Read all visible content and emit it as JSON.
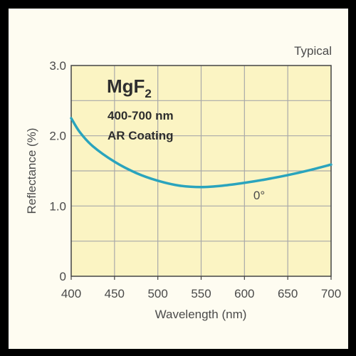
{
  "chart_data": {
    "type": "line",
    "x_label": "Wavelength (nm)",
    "y_label": "Reflectance (%)",
    "corner_note": "Typical",
    "title_main": "MgF",
    "title_sub": "2",
    "subtitle_lines": [
      "400-700 nm",
      "AR Coating"
    ],
    "x_ticks": [
      400,
      450,
      500,
      550,
      600,
      650,
      700
    ],
    "y_ticks": [
      0,
      1.0,
      2.0,
      3.0
    ],
    "y_tick_labels": [
      "0",
      "1.0",
      "2.0",
      "3.0"
    ],
    "xlim": [
      400,
      700
    ],
    "ylim": [
      0,
      3.0
    ],
    "grid": true,
    "colors": {
      "plot_bg": "#fbf4c3",
      "grid": "#a9a9a9",
      "line": "#2aa4bd",
      "frame": "#444444"
    },
    "series": [
      {
        "name": "0°",
        "x": [
          400,
          410,
          425,
          450,
          475,
          500,
          525,
          550,
          575,
          600,
          625,
          650,
          675,
          700
        ],
        "y": [
          2.25,
          2.05,
          1.85,
          1.63,
          1.47,
          1.36,
          1.29,
          1.27,
          1.29,
          1.33,
          1.38,
          1.44,
          1.51,
          1.59
        ]
      }
    ]
  }
}
